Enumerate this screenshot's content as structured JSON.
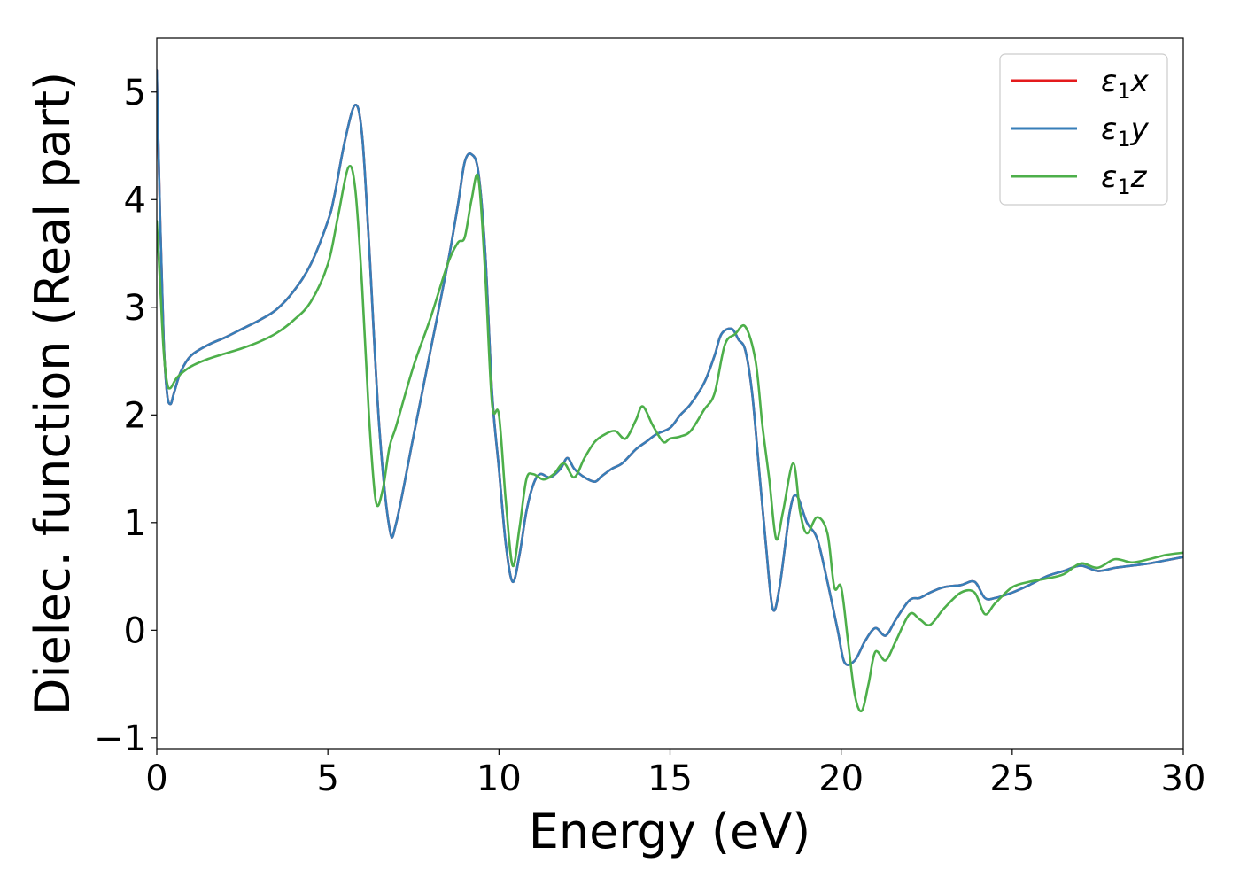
{
  "chart_data": {
    "type": "line",
    "title": "",
    "xlabel": "Energy (eV)",
    "ylabel": "Dielec. function (Real part)",
    "xlim": [
      0,
      30
    ],
    "ylim": [
      -1.1,
      5.5
    ],
    "xticks": [
      0,
      5,
      10,
      15,
      20,
      25,
      30
    ],
    "xtick_labels": [
      "0",
      "5",
      "10",
      "15",
      "20",
      "25",
      "30"
    ],
    "yticks": [
      -1,
      0,
      1,
      2,
      3,
      4,
      5
    ],
    "ytick_labels": [
      "−1",
      "0",
      "1",
      "2",
      "3",
      "4",
      "5"
    ],
    "grid": false,
    "legend_position": "top-right",
    "series": [
      {
        "name": "ε₁x",
        "label_base": "ε",
        "label_sub": "1",
        "label_var": "x",
        "color": "#e41a1c",
        "x": [
          0,
          0.1,
          0.2,
          0.3,
          0.4,
          0.5,
          0.7,
          1,
          1.5,
          2,
          2.5,
          3,
          3.5,
          4,
          4.5,
          5,
          5.2,
          5.5,
          5.8,
          6,
          6.2,
          6.5,
          6.8,
          7,
          7.5,
          8,
          8.5,
          8.8,
          9,
          9.2,
          9.4,
          9.6,
          9.8,
          10,
          10.2,
          10.4,
          10.6,
          10.8,
          11,
          11.2,
          11.5,
          11.8,
          12,
          12.2,
          12.5,
          12.8,
          13,
          13.3,
          13.6,
          14,
          14.3,
          14.6,
          15,
          15.3,
          15.6,
          16,
          16.3,
          16.5,
          16.8,
          17,
          17.2,
          17.4,
          17.6,
          17.8,
          18,
          18.2,
          18.5,
          18.7,
          19,
          19.3,
          19.6,
          19.9,
          20.1,
          20.4,
          20.7,
          21,
          21.3,
          21.6,
          22,
          22.3,
          22.6,
          23,
          23.5,
          23.9,
          24.2,
          24.5,
          25,
          25.5,
          26,
          26.5,
          27,
          27.5,
          28,
          28.5,
          29,
          29.5,
          30
        ],
        "values": [
          5.2,
          3.8,
          2.7,
          2.2,
          2.1,
          2.2,
          2.4,
          2.55,
          2.65,
          2.72,
          2.8,
          2.88,
          2.98,
          3.15,
          3.4,
          3.8,
          4.05,
          4.55,
          4.88,
          4.6,
          3.6,
          1.9,
          0.95,
          1.0,
          1.8,
          2.6,
          3.4,
          3.95,
          4.35,
          4.42,
          4.25,
          3.5,
          2.2,
          1.5,
          0.8,
          0.45,
          0.7,
          1.1,
          1.35,
          1.45,
          1.42,
          1.5,
          1.6,
          1.5,
          1.42,
          1.38,
          1.43,
          1.5,
          1.55,
          1.68,
          1.75,
          1.82,
          1.88,
          2.0,
          2.1,
          2.3,
          2.55,
          2.75,
          2.8,
          2.7,
          2.6,
          2.2,
          1.5,
          0.8,
          0.2,
          0.4,
          1.1,
          1.25,
          1.0,
          0.85,
          0.45,
          0.0,
          -0.3,
          -0.28,
          -0.1,
          0.02,
          -0.05,
          0.1,
          0.28,
          0.3,
          0.35,
          0.4,
          0.42,
          0.45,
          0.3,
          0.3,
          0.35,
          0.42,
          0.5,
          0.55,
          0.6,
          0.55,
          0.58,
          0.6,
          0.62,
          0.65,
          0.68
        ]
      },
      {
        "name": "ε₁y",
        "label_base": "ε",
        "label_sub": "1",
        "label_var": "y",
        "color": "#377eb8",
        "x": [
          0,
          0.1,
          0.2,
          0.3,
          0.4,
          0.5,
          0.7,
          1,
          1.5,
          2,
          2.5,
          3,
          3.5,
          4,
          4.5,
          5,
          5.2,
          5.5,
          5.8,
          6,
          6.2,
          6.5,
          6.8,
          7,
          7.5,
          8,
          8.5,
          8.8,
          9,
          9.2,
          9.4,
          9.6,
          9.8,
          10,
          10.2,
          10.4,
          10.6,
          10.8,
          11,
          11.2,
          11.5,
          11.8,
          12,
          12.2,
          12.5,
          12.8,
          13,
          13.3,
          13.6,
          14,
          14.3,
          14.6,
          15,
          15.3,
          15.6,
          16,
          16.3,
          16.5,
          16.8,
          17,
          17.2,
          17.4,
          17.6,
          17.8,
          18,
          18.2,
          18.5,
          18.7,
          19,
          19.3,
          19.6,
          19.9,
          20.1,
          20.4,
          20.7,
          21,
          21.3,
          21.6,
          22,
          22.3,
          22.6,
          23,
          23.5,
          23.9,
          24.2,
          24.5,
          25,
          25.5,
          26,
          26.5,
          27,
          27.5,
          28,
          28.5,
          29,
          29.5,
          30
        ],
        "values": [
          5.2,
          3.8,
          2.7,
          2.2,
          2.1,
          2.2,
          2.4,
          2.55,
          2.65,
          2.72,
          2.8,
          2.88,
          2.98,
          3.15,
          3.4,
          3.8,
          4.05,
          4.55,
          4.88,
          4.6,
          3.6,
          1.9,
          0.95,
          1.0,
          1.8,
          2.6,
          3.4,
          3.95,
          4.35,
          4.42,
          4.25,
          3.5,
          2.2,
          1.5,
          0.8,
          0.45,
          0.7,
          1.1,
          1.35,
          1.45,
          1.42,
          1.5,
          1.6,
          1.5,
          1.42,
          1.38,
          1.43,
          1.5,
          1.55,
          1.68,
          1.75,
          1.82,
          1.88,
          2.0,
          2.1,
          2.3,
          2.55,
          2.75,
          2.8,
          2.7,
          2.6,
          2.2,
          1.5,
          0.8,
          0.2,
          0.4,
          1.1,
          1.25,
          1.0,
          0.85,
          0.45,
          0.0,
          -0.3,
          -0.28,
          -0.1,
          0.02,
          -0.05,
          0.1,
          0.28,
          0.3,
          0.35,
          0.4,
          0.42,
          0.45,
          0.3,
          0.3,
          0.35,
          0.42,
          0.5,
          0.55,
          0.6,
          0.55,
          0.58,
          0.6,
          0.62,
          0.65,
          0.68
        ]
      },
      {
        "name": "ε₁z",
        "label_base": "ε",
        "label_sub": "1",
        "label_var": "z",
        "color": "#4daf4a",
        "x": [
          0,
          0.1,
          0.2,
          0.3,
          0.4,
          0.6,
          1,
          1.5,
          2,
          2.5,
          3,
          3.5,
          4,
          4.5,
          5,
          5.3,
          5.6,
          5.8,
          6,
          6.2,
          6.4,
          6.6,
          6.8,
          7,
          7.5,
          8,
          8.5,
          8.8,
          9,
          9.2,
          9.4,
          9.6,
          9.8,
          10,
          10.2,
          10.4,
          10.6,
          10.8,
          11,
          11.3,
          11.6,
          11.9,
          12.2,
          12.5,
          12.8,
          13.1,
          13.4,
          13.7,
          14,
          14.2,
          14.5,
          14.8,
          15,
          15.3,
          15.6,
          16,
          16.3,
          16.6,
          16.9,
          17.2,
          17.5,
          17.7,
          17.9,
          18.1,
          18.3,
          18.6,
          18.8,
          19,
          19.3,
          19.6,
          19.8,
          20,
          20.2,
          20.4,
          20.6,
          20.8,
          21,
          21.3,
          21.6,
          22,
          22.3,
          22.6,
          23,
          23.5,
          23.9,
          24.2,
          24.5,
          25,
          25.5,
          26,
          26.5,
          27,
          27.5,
          28,
          28.5,
          29,
          29.5,
          30
        ],
        "values": [
          3.8,
          3.2,
          2.6,
          2.3,
          2.25,
          2.35,
          2.45,
          2.52,
          2.57,
          2.62,
          2.68,
          2.76,
          2.88,
          3.05,
          3.4,
          3.85,
          4.3,
          4.1,
          3.2,
          2.0,
          1.2,
          1.3,
          1.7,
          1.9,
          2.45,
          2.9,
          3.4,
          3.6,
          3.65,
          4.0,
          4.2,
          3.3,
          2.1,
          2.0,
          1.2,
          0.6,
          0.95,
          1.4,
          1.45,
          1.4,
          1.45,
          1.55,
          1.42,
          1.6,
          1.75,
          1.82,
          1.85,
          1.78,
          1.95,
          2.08,
          1.9,
          1.75,
          1.78,
          1.8,
          1.85,
          2.05,
          2.2,
          2.65,
          2.75,
          2.82,
          2.5,
          1.9,
          1.4,
          0.85,
          1.1,
          1.55,
          1.1,
          0.9,
          1.05,
          0.9,
          0.4,
          0.4,
          -0.1,
          -0.6,
          -0.75,
          -0.5,
          -0.2,
          -0.28,
          -0.1,
          0.15,
          0.1,
          0.05,
          0.2,
          0.35,
          0.35,
          0.15,
          0.25,
          0.4,
          0.45,
          0.48,
          0.52,
          0.62,
          0.58,
          0.66,
          0.63,
          0.66,
          0.7,
          0.72
        ]
      }
    ]
  }
}
